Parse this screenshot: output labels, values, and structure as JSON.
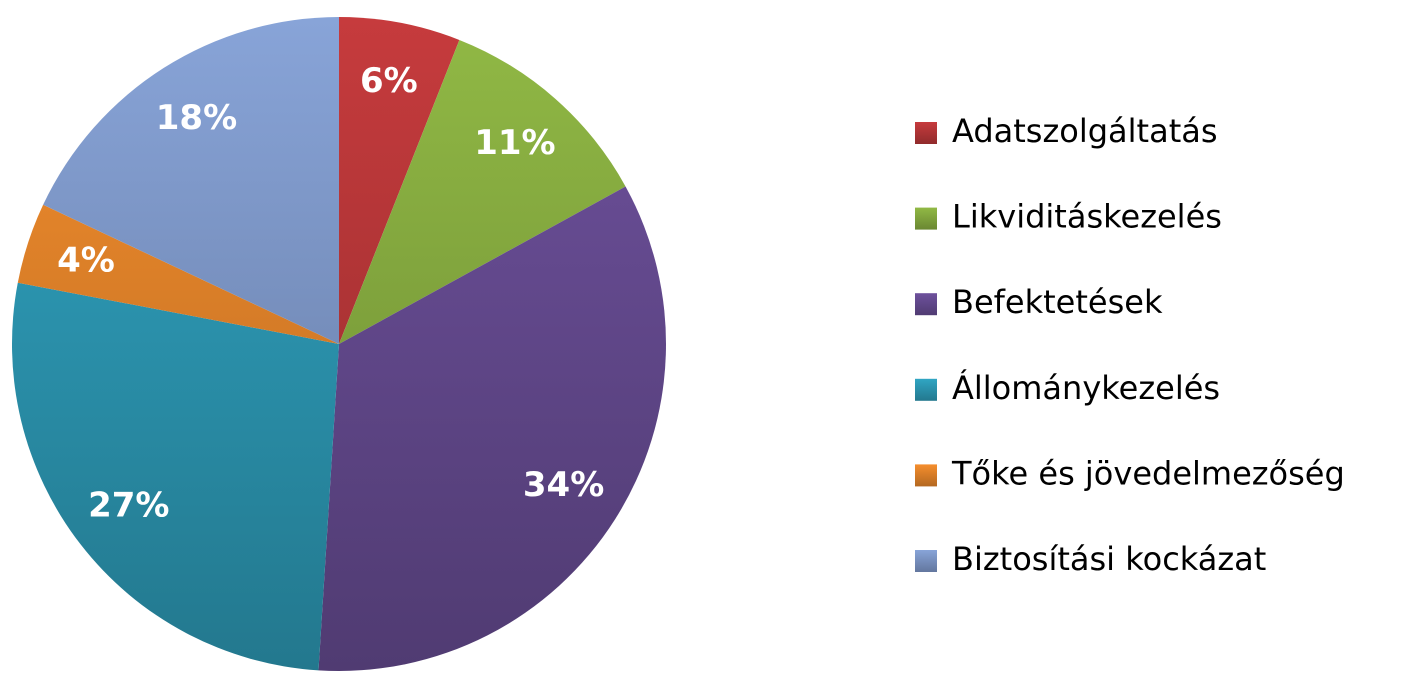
{
  "chart_data": {
    "type": "pie",
    "categories": [
      "Adatszolgáltatás",
      "Likviditáskezelés",
      "Befektetések",
      "Állománykezelés",
      "Tőke és jövedelmezőség",
      "Biztosítási kockázat"
    ],
    "values": [
      6,
      11,
      34,
      27,
      4,
      18
    ],
    "value_labels": [
      "6%",
      "11%",
      "34%",
      "27%",
      "4%",
      "18%"
    ],
    "colors": [
      "#c0393b",
      "#8db443",
      "#6b4f98",
      "#2fa0bd",
      "#ee8a2c",
      "#849fd2"
    ],
    "legend": "right"
  }
}
